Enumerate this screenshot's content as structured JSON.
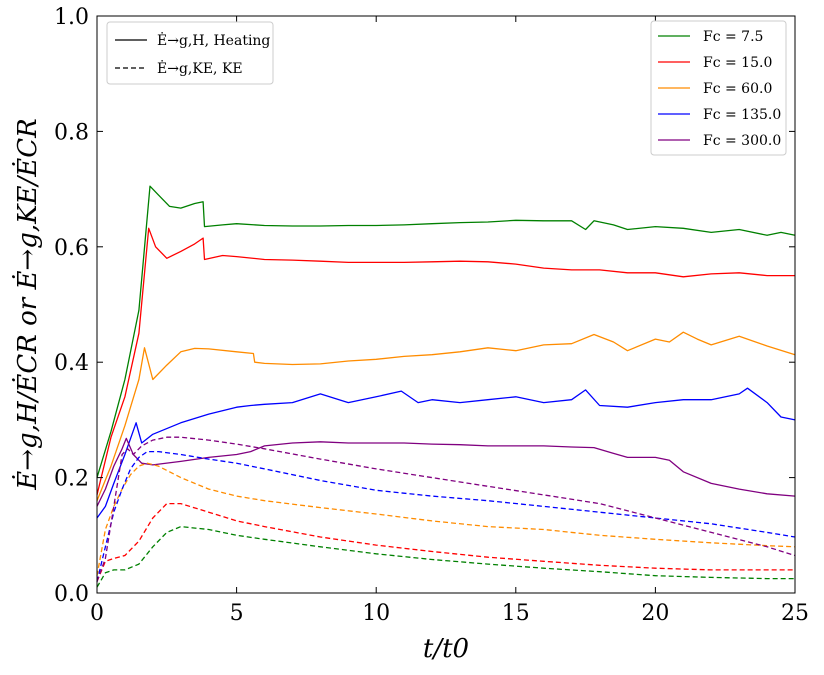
{
  "chart_data": {
    "type": "line",
    "title": "",
    "xlabel": "t/t0",
    "ylabel": "Ė→g,H/ĖCR or Ė→g,KE/ĖCR",
    "xlim": [
      0,
      25
    ],
    "ylim": [
      0.0,
      1.0
    ],
    "xticks": [
      "0",
      "5",
      "10",
      "15",
      "20",
      "25"
    ],
    "yticks": [
      "0.0",
      "0.2",
      "0.4",
      "0.6",
      "0.8",
      "1.0"
    ],
    "grid": false,
    "style_legend": {
      "placement": "upper-left",
      "entries": [
        {
          "label": "Ė→g,H, Heating",
          "dash": "solid"
        },
        {
          "label": "Ė→g,KE, KE",
          "dash": "dashed"
        }
      ]
    },
    "legend": {
      "placement": "upper-right",
      "entries": [
        "Fc = 7.5",
        "Fc = 15.0",
        "Fc = 60.0",
        "Fc = 135.0",
        "Fc = 300.0"
      ]
    },
    "series": [
      {
        "name": "Fc = 7.5",
        "kind": "Heating",
        "color": "#008000",
        "x": [
          0,
          0.5,
          1.0,
          1.5,
          1.9,
          2.2,
          2.6,
          3.0,
          3.5,
          3.8,
          3.85,
          4.5,
          5,
          6,
          7,
          8,
          9,
          10,
          11,
          12,
          13,
          14,
          15,
          16,
          17,
          17.5,
          17.8,
          18.5,
          19,
          20,
          21,
          22,
          23,
          24,
          24.5,
          25
        ],
        "y": [
          0.2,
          0.28,
          0.37,
          0.49,
          0.705,
          0.69,
          0.67,
          0.667,
          0.675,
          0.678,
          0.635,
          0.638,
          0.64,
          0.637,
          0.636,
          0.636,
          0.637,
          0.637,
          0.638,
          0.64,
          0.642,
          0.643,
          0.646,
          0.645,
          0.645,
          0.63,
          0.645,
          0.638,
          0.63,
          0.635,
          0.632,
          0.625,
          0.63,
          0.62,
          0.625,
          0.62
        ]
      },
      {
        "name": "Fc = 15.0",
        "kind": "Heating",
        "color": "#ff0000",
        "x": [
          0,
          0.5,
          1.0,
          1.5,
          1.85,
          2.1,
          2.5,
          3.0,
          3.5,
          3.8,
          3.85,
          4.5,
          5,
          6,
          7,
          8,
          9,
          10,
          11,
          12,
          13,
          14,
          15,
          16,
          17,
          18,
          19,
          20,
          21,
          22,
          23,
          24,
          25
        ],
        "y": [
          0.17,
          0.27,
          0.34,
          0.45,
          0.632,
          0.6,
          0.58,
          0.592,
          0.605,
          0.615,
          0.578,
          0.585,
          0.583,
          0.578,
          0.577,
          0.575,
          0.573,
          0.573,
          0.573,
          0.574,
          0.575,
          0.574,
          0.57,
          0.563,
          0.56,
          0.56,
          0.555,
          0.555,
          0.548,
          0.553,
          0.555,
          0.55,
          0.55
        ]
      },
      {
        "name": "Fc = 60.0",
        "kind": "Heating",
        "color": "#ff8c00",
        "x": [
          0,
          0.5,
          1.0,
          1.5,
          1.7,
          2.0,
          2.5,
          3.0,
          3.5,
          4.0,
          5.0,
          5.6,
          5.65,
          6,
          7,
          8,
          9,
          10,
          11,
          12,
          13,
          14,
          15,
          16,
          17,
          17.8,
          18.5,
          19,
          20,
          20.5,
          21,
          21.5,
          22,
          23,
          24,
          25
        ],
        "y": [
          0.16,
          0.22,
          0.29,
          0.37,
          0.425,
          0.37,
          0.395,
          0.418,
          0.424,
          0.423,
          0.418,
          0.415,
          0.4,
          0.398,
          0.396,
          0.397,
          0.402,
          0.405,
          0.41,
          0.413,
          0.418,
          0.425,
          0.42,
          0.43,
          0.432,
          0.448,
          0.435,
          0.42,
          0.44,
          0.435,
          0.452,
          0.44,
          0.43,
          0.445,
          0.428,
          0.413
        ]
      },
      {
        "name": "Fc = 135.0",
        "kind": "Heating",
        "color": "#0000ff",
        "x": [
          0,
          0.3,
          0.6,
          1.0,
          1.4,
          1.6,
          2.0,
          3.0,
          4.0,
          5.0,
          5.5,
          6.0,
          7.0,
          8.0,
          9.0,
          10.0,
          10.9,
          11.5,
          12,
          13,
          14,
          15,
          16,
          17,
          17.5,
          18,
          19,
          20,
          21,
          22,
          23,
          23.3,
          24,
          24.5,
          25
        ],
        "y": [
          0.13,
          0.15,
          0.19,
          0.24,
          0.295,
          0.26,
          0.275,
          0.295,
          0.31,
          0.322,
          0.325,
          0.327,
          0.33,
          0.345,
          0.33,
          0.34,
          0.35,
          0.33,
          0.335,
          0.33,
          0.335,
          0.34,
          0.33,
          0.335,
          0.352,
          0.325,
          0.322,
          0.33,
          0.335,
          0.335,
          0.345,
          0.355,
          0.33,
          0.305,
          0.3
        ]
      },
      {
        "name": "Fc = 300.0",
        "kind": "Heating",
        "color": "#800080",
        "x": [
          0,
          0.3,
          0.6,
          0.9,
          1.05,
          1.3,
          1.6,
          2.0,
          3.0,
          4.0,
          5.0,
          5.5,
          6.0,
          7.0,
          8.0,
          9.0,
          10.0,
          11.0,
          12.0,
          13,
          14,
          15,
          16,
          17,
          17.8,
          18.5,
          19,
          20,
          20.5,
          21,
          22,
          23,
          24,
          25
        ],
        "y": [
          0.15,
          0.18,
          0.22,
          0.25,
          0.268,
          0.24,
          0.225,
          0.222,
          0.228,
          0.235,
          0.24,
          0.245,
          0.255,
          0.26,
          0.262,
          0.26,
          0.26,
          0.26,
          0.258,
          0.257,
          0.255,
          0.255,
          0.255,
          0.253,
          0.252,
          0.242,
          0.235,
          0.235,
          0.23,
          0.21,
          0.19,
          0.18,
          0.172,
          0.168
        ]
      },
      {
        "name": "Fc = 7.5",
        "kind": "KE",
        "color": "#008000",
        "x": [
          0,
          0.3,
          0.6,
          1.0,
          1.5,
          2.0,
          2.5,
          3.0,
          4.0,
          5.0,
          6.0,
          8.0,
          10.0,
          12.0,
          14.0,
          16.0,
          18.0,
          20.0,
          22.0,
          24.0,
          25.0
        ],
        "y": [
          0.01,
          0.035,
          0.04,
          0.04,
          0.05,
          0.08,
          0.105,
          0.115,
          0.11,
          0.1,
          0.093,
          0.08,
          0.068,
          0.058,
          0.05,
          0.043,
          0.037,
          0.03,
          0.027,
          0.025,
          0.025
        ]
      },
      {
        "name": "Fc = 15.0",
        "kind": "KE",
        "color": "#ff0000",
        "x": [
          0,
          0.3,
          0.6,
          1.0,
          1.5,
          2.0,
          2.5,
          3.0,
          4.0,
          5.0,
          6.0,
          8.0,
          10.0,
          12.0,
          14.0,
          16.0,
          18.0,
          20.0,
          22.0,
          24.0,
          25.0
        ],
        "y": [
          0.02,
          0.055,
          0.06,
          0.065,
          0.09,
          0.13,
          0.155,
          0.155,
          0.14,
          0.125,
          0.115,
          0.097,
          0.083,
          0.072,
          0.062,
          0.055,
          0.048,
          0.043,
          0.04,
          0.04,
          0.04
        ]
      },
      {
        "name": "Fc = 60.0",
        "kind": "KE",
        "color": "#ff8c00",
        "x": [
          0,
          0.3,
          0.6,
          0.9,
          1.2,
          1.5,
          1.8,
          2.2,
          3.0,
          4.0,
          5.0,
          6.0,
          8.0,
          10.0,
          12.0,
          14.0,
          16.0,
          18.0,
          20.0,
          22.0,
          24.0,
          25.0
        ],
        "y": [
          0.03,
          0.11,
          0.15,
          0.18,
          0.205,
          0.22,
          0.225,
          0.22,
          0.2,
          0.18,
          0.168,
          0.16,
          0.148,
          0.137,
          0.125,
          0.115,
          0.11,
          0.1,
          0.093,
          0.087,
          0.082,
          0.08
        ]
      },
      {
        "name": "Fc = 135.0",
        "kind": "KE",
        "color": "#0000ff",
        "x": [
          0,
          0.3,
          0.6,
          0.9,
          1.2,
          1.5,
          1.8,
          2.2,
          3.0,
          4.0,
          5.0,
          6.0,
          8.0,
          10.0,
          12.0,
          14.0,
          16.0,
          18.0,
          20.0,
          22.0,
          24.0,
          25.0
        ],
        "y": [
          0.02,
          0.08,
          0.14,
          0.18,
          0.215,
          0.235,
          0.245,
          0.245,
          0.24,
          0.232,
          0.225,
          0.215,
          0.195,
          0.178,
          0.168,
          0.16,
          0.15,
          0.14,
          0.13,
          0.12,
          0.105,
          0.097
        ]
      },
      {
        "name": "Fc = 300.0",
        "kind": "KE",
        "color": "#800080",
        "x": [
          0,
          0.3,
          0.6,
          0.9,
          1.1,
          1.3,
          1.6,
          2.0,
          2.5,
          3.0,
          4.0,
          5.0,
          6.0,
          8.0,
          10.0,
          12.0,
          14.0,
          16.0,
          18.0,
          20.0,
          22.0,
          24.0,
          25.0
        ],
        "y": [
          0.02,
          0.06,
          0.15,
          0.24,
          0.25,
          0.24,
          0.255,
          0.265,
          0.27,
          0.27,
          0.265,
          0.258,
          0.25,
          0.232,
          0.215,
          0.2,
          0.185,
          0.17,
          0.155,
          0.13,
          0.105,
          0.08,
          0.065
        ]
      }
    ]
  }
}
